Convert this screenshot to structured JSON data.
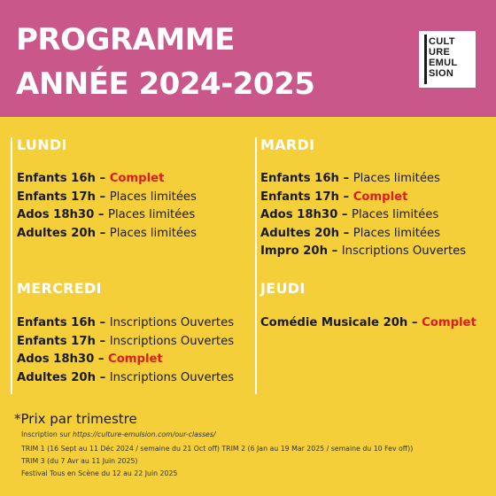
{
  "header": {
    "title_line1": "PROGRAMME",
    "title_line2": "ANNÉE 2024-2025",
    "logo": [
      "CULT",
      "URE",
      "EMUL",
      "SION"
    ]
  },
  "colors": {
    "header_bg": "#c9578a",
    "body_bg": "#f4cf3a",
    "complet": "#e01b1b"
  },
  "days": {
    "lundi": {
      "name": "LUNDI",
      "rows": [
        {
          "label": "Enfants 16h",
          "sep": " – ",
          "status": "Complet",
          "complet": true
        },
        {
          "label": "Enfants 17h",
          "sep": " – ",
          "status": "Places limitées",
          "complet": false
        },
        {
          "label": "Ados 18h30",
          "sep": " – ",
          "status": "Places limitées",
          "complet": false
        },
        {
          "label": "Adultes 20h",
          "sep": " – ",
          "status": "Places limitées",
          "complet": false
        }
      ]
    },
    "mardi": {
      "name": "MARDI",
      "rows": [
        {
          "label": "Enfants 16h",
          "sep": " – ",
          "status": "Places limitées",
          "complet": false
        },
        {
          "label": "Enfants 17h",
          "sep": " – ",
          "status": "Complet",
          "complet": true
        },
        {
          "label": "Ados 18h30",
          "sep": " – ",
          "status": "Places limitées",
          "complet": false
        },
        {
          "label": "Adultes 20h",
          "sep": " – ",
          "status": "Places limitées",
          "complet": false
        },
        {
          "label": "Impro 20h",
          "sep": " – ",
          "status": "Inscriptions Ouvertes",
          "complet": false
        }
      ]
    },
    "mercredi": {
      "name": "MERCREDI",
      "rows": [
        {
          "label": "Enfants 16h",
          "sep": " – ",
          "status": "Inscriptions Ouvertes",
          "complet": false
        },
        {
          "label": "Enfants 17h",
          "sep": " – ",
          "status": "Inscriptions Ouvertes",
          "complet": false
        },
        {
          "label": "Ados 18h30",
          "sep": " – ",
          "status": "Complet",
          "complet": true
        },
        {
          "label": "Adultes 20h",
          "sep": " – ",
          "status": "Inscriptions Ouvertes",
          "complet": false
        }
      ]
    },
    "jeudi": {
      "name": "JEUDI",
      "rows": [
        {
          "label": "Comédie Musicale 20h",
          "sep": " – ",
          "status": "Complet",
          "complet": true
        }
      ]
    }
  },
  "footer": {
    "price_note": "*Prix par trimestre",
    "inscription_prefix": "Inscription sur ",
    "inscription_url": "https://culture-emulsion.com/our-classes/",
    "trim_line1": "TRIM 1 (16 Sept au 11 Déc 2024 / semaine du 21 Oct off) TRIM 2 (6 Jan au 19 Mar 2025 / semaine du 10 Fev off))",
    "trim_line2": "TRIM 3 (du 7 Avr au 11 Juin 2025)",
    "festival": "Festival Tous en Scène du 12 au 22 Juin 2025"
  }
}
